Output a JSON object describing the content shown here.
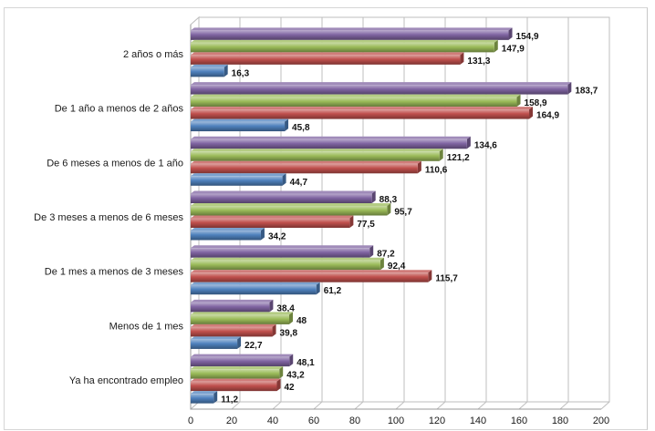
{
  "chart_data": {
    "type": "bar",
    "orientation": "horizontal",
    "categories": [
      "2 años o más",
      "De 1 año a menos de 2 años",
      "De 6 meses a menos de 1 año",
      "De 3 meses a menos de 6 meses",
      "De 1 mes a menos de 3 meses",
      "Menos de 1 mes",
      "Ya ha encontrado empleo"
    ],
    "series": [
      {
        "color": "#8064a2",
        "values": [
          154.9,
          183.7,
          134.6,
          88.3,
          87.2,
          38.4,
          48.1
        ],
        "labels": [
          "154,9",
          "183,7",
          "134,6",
          "88,3",
          "87,2",
          "38,4",
          "48,1"
        ]
      },
      {
        "color": "#9bbb59",
        "values": [
          147.9,
          158.9,
          121.2,
          95.7,
          92.4,
          48,
          43.2
        ],
        "labels": [
          "147,9",
          "158,9",
          "121,2",
          "95,7",
          "92,4",
          "48",
          "43,2"
        ]
      },
      {
        "color": "#c0504d",
        "values": [
          131.3,
          164.9,
          110.6,
          77.5,
          115.7,
          39.8,
          42
        ],
        "labels": [
          "131,3",
          "164,9",
          "110,6",
          "77,5",
          "115,7",
          "39,8",
          "42"
        ]
      },
      {
        "color": "#4f81bd",
        "values": [
          16.3,
          45.8,
          44.7,
          34.2,
          61.2,
          22.7,
          11.2
        ],
        "labels": [
          "16,3",
          "45,8",
          "44,7",
          "34,2",
          "61,2",
          "22,7",
          "11,2"
        ]
      }
    ],
    "xlim": [
      0,
      200
    ],
    "xticks": [
      0,
      20,
      40,
      60,
      80,
      100,
      120,
      140,
      160,
      180,
      200
    ],
    "grid": true,
    "legend": "none",
    "style": "3d"
  }
}
